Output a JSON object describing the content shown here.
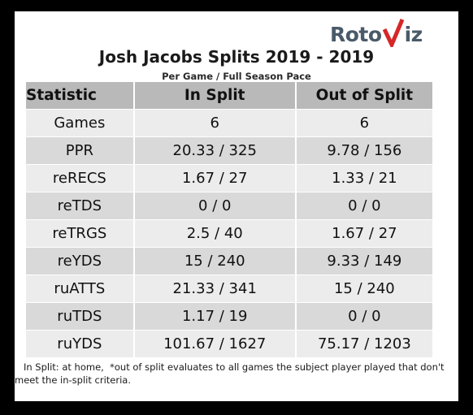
{
  "logo": {
    "text_left": "Roto",
    "text_right": "iz",
    "accent_color": "#d62728",
    "text_color": "#4a5a69"
  },
  "title": "Josh Jacobs Splits 2019 - 2019",
  "subtitle": "Per Game / Full Season Pace",
  "table": {
    "headers": [
      "Statistic",
      "In Split",
      "Out of Split"
    ],
    "rows": [
      [
        "Games",
        "6",
        "6"
      ],
      [
        "PPR",
        "20.33 / 325",
        "9.78 / 156"
      ],
      [
        "reRECS",
        "1.67 / 27",
        "1.33 / 21"
      ],
      [
        "reTDS",
        "0 / 0",
        "0 / 0"
      ],
      [
        "reTRGS",
        "2.5 / 40",
        "1.67 / 27"
      ],
      [
        "reYDS",
        "15 / 240",
        "9.33 / 149"
      ],
      [
        "ruATTS",
        "21.33 / 341",
        "15 / 240"
      ],
      [
        "ruTDS",
        "1.17 / 19",
        "0 / 0"
      ],
      [
        "ruYDS",
        "101.67 / 1627",
        "75.17 / 1203"
      ]
    ]
  },
  "footnote": "   In Split: at home,  *out of split evaluates to all games the subject player played that don't meet the in-split criteria."
}
